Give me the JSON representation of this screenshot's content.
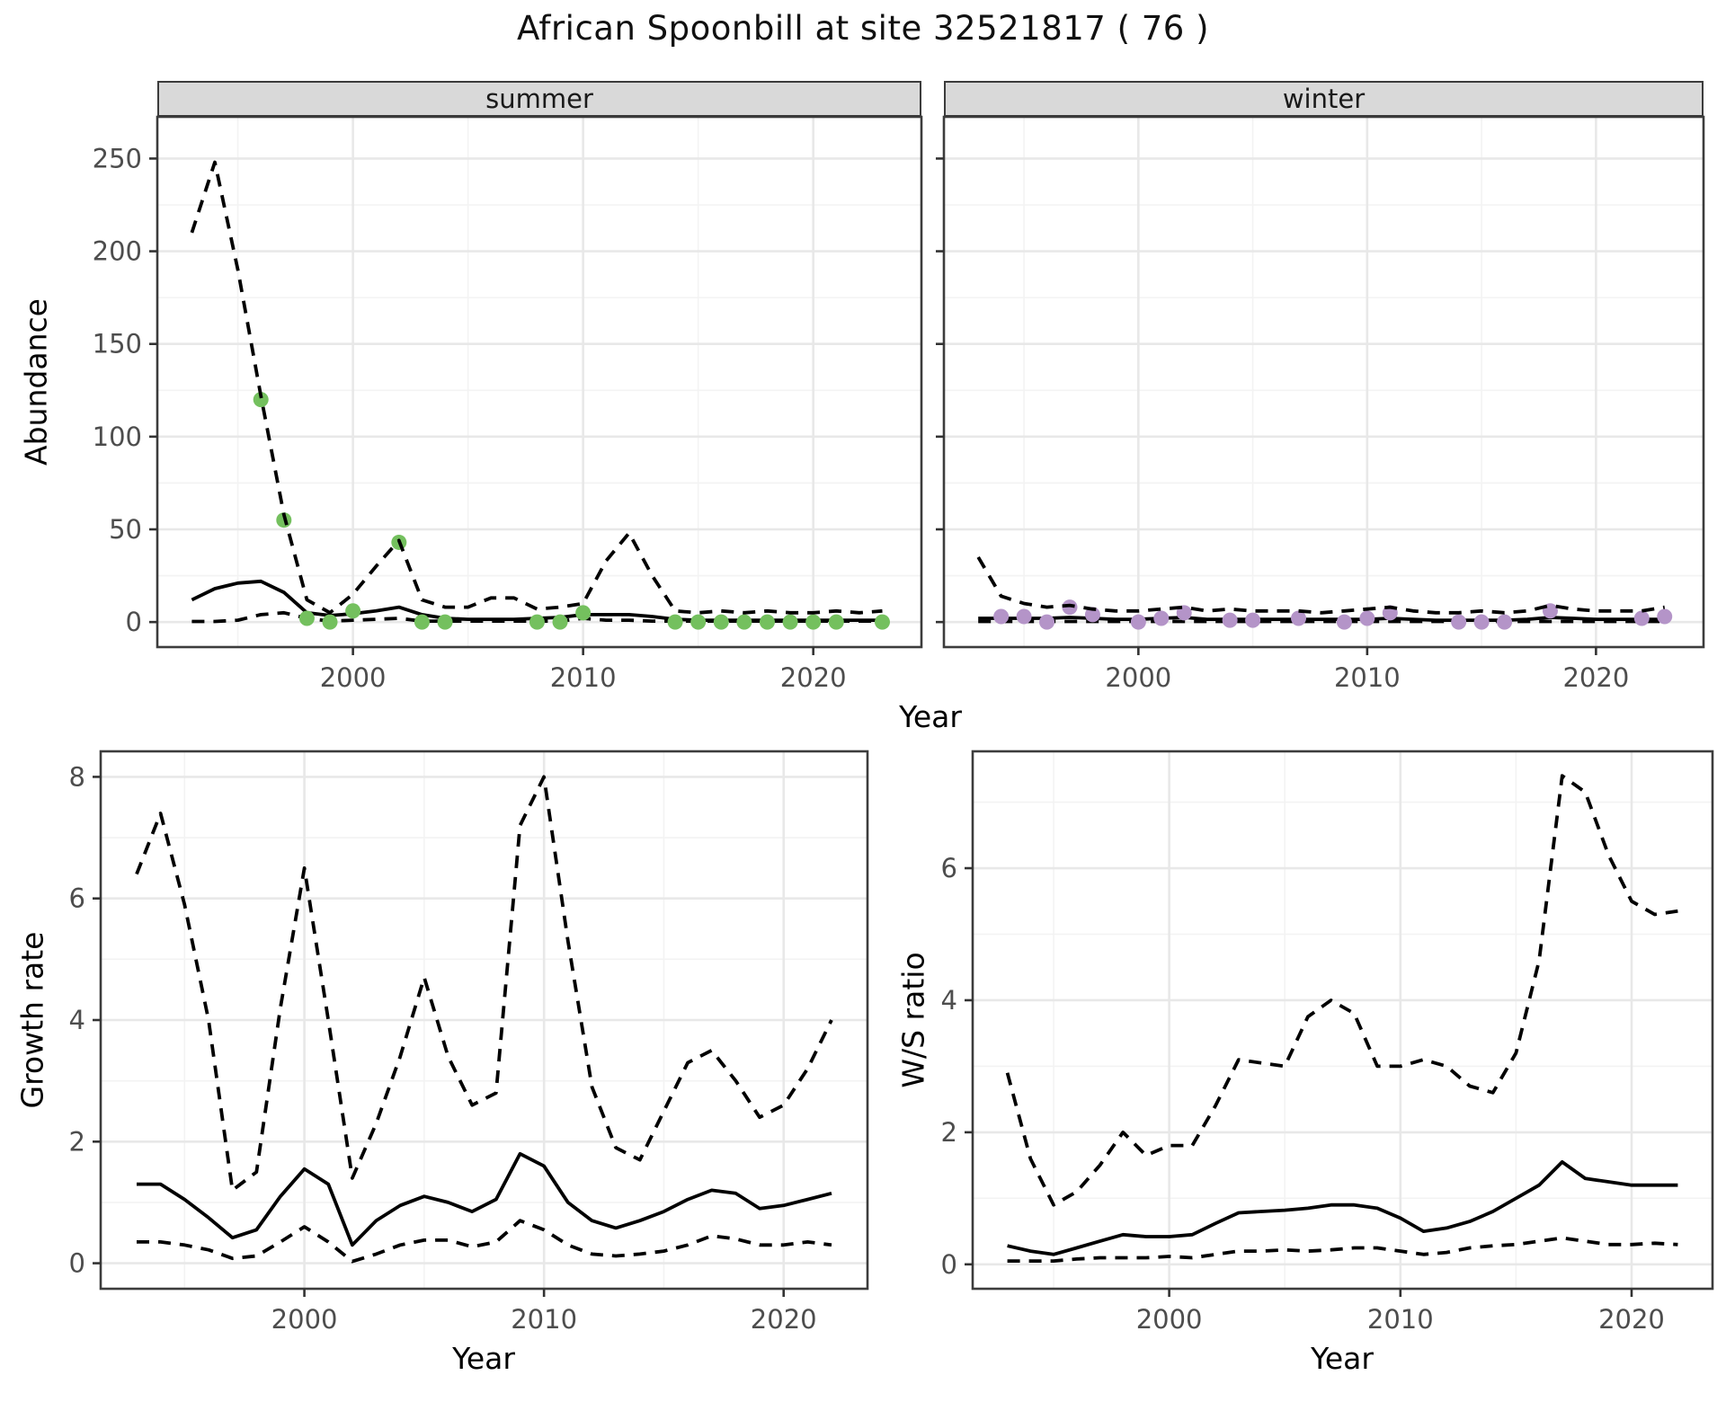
{
  "title": "African Spoonbill at site 32521817 ( 76 )",
  "colors": {
    "point_summer": "#74c05e",
    "point_winter": "#b494c8",
    "line": "#000000",
    "strip_bg": "#d9d9d9",
    "grid_major": "#e8e8e8",
    "grid_minor": "#f3f3f3",
    "panel_border": "#3c3c3c",
    "tick_text": "#4d4d4d"
  },
  "chart_data": [
    {
      "type": "line",
      "facet_label": "summer",
      "xlabel": "Year",
      "ylabel": "Abundance",
      "xlim": [
        1991.5,
        2024.7
      ],
      "ylim": [
        -13.5,
        272.5
      ],
      "xticks": [
        2000,
        2010,
        2020
      ],
      "yticks": [
        0,
        50,
        100,
        150,
        200,
        250
      ],
      "x": [
        1993,
        1994,
        1995,
        1996,
        1997,
        1998,
        1999,
        2000,
        2001,
        2002,
        2003,
        2004,
        2005,
        2006,
        2007,
        2008,
        2009,
        2010,
        2011,
        2012,
        2013,
        2014,
        2015,
        2016,
        2017,
        2018,
        2019,
        2020,
        2021,
        2022,
        2023
      ],
      "series": [
        {
          "name": "fit",
          "style": "solid",
          "values": [
            12,
            18,
            21,
            22,
            16,
            5,
            3.5,
            4.5,
            6,
            8,
            4,
            2,
            1.5,
            1.5,
            1.5,
            2,
            2.5,
            4,
            4,
            4,
            3,
            1.5,
            1,
            1,
            1,
            1,
            1,
            1,
            1,
            1,
            1
          ]
        },
        {
          "name": "upper_ci",
          "style": "dashed",
          "values": [
            210,
            248,
            190,
            122,
            58,
            12,
            5,
            15,
            30,
            44,
            12,
            8,
            8,
            13,
            13,
            7,
            8,
            10,
            33,
            48,
            25,
            6,
            5,
            6,
            5,
            6,
            5,
            5,
            6,
            5,
            6
          ]
        },
        {
          "name": "lower_ci",
          "style": "dashed",
          "values": [
            0.3,
            0.3,
            1,
            4,
            5,
            2,
            0.5,
            1,
            1.5,
            2,
            0.5,
            0.5,
            0.5,
            0.5,
            0.5,
            0.5,
            0.5,
            2,
            1,
            1,
            0.5,
            0.5,
            0.5,
            0.5,
            0.5,
            0.5,
            0.5,
            0.5,
            0.5,
            0.5,
            0.5
          ]
        }
      ],
      "points": {
        "color_key": "point_summer",
        "x": [
          1996,
          1997,
          1998,
          1999,
          2000,
          2002,
          2003,
          2004,
          2008,
          2009,
          2010,
          2014,
          2015,
          2016,
          2017,
          2018,
          2019,
          2020,
          2021,
          2023
        ],
        "y": [
          120,
          55,
          2,
          0,
          6,
          43,
          0,
          0,
          0,
          0,
          5,
          0,
          0,
          0,
          0,
          0,
          0,
          0,
          0,
          0
        ]
      }
    },
    {
      "type": "line",
      "facet_label": "winter",
      "xlabel": "Year",
      "ylabel": "Abundance",
      "xlim": [
        1991.5,
        2024.7
      ],
      "ylim": [
        -13.5,
        272.5
      ],
      "xticks": [
        2000,
        2010,
        2020
      ],
      "yticks": [
        0,
        50,
        100,
        150,
        200,
        250
      ],
      "x": [
        1993,
        1994,
        1995,
        1996,
        1997,
        1998,
        1999,
        2000,
        2001,
        2002,
        2003,
        2004,
        2005,
        2006,
        2007,
        2008,
        2009,
        2010,
        2011,
        2012,
        2013,
        2014,
        2015,
        2016,
        2017,
        2018,
        2019,
        2020,
        2021,
        2022,
        2023
      ],
      "series": [
        {
          "name": "fit",
          "style": "solid",
          "values": [
            2,
            2,
            2,
            2,
            2.5,
            2,
            1.5,
            1.5,
            2,
            2.5,
            1.5,
            1.5,
            1.5,
            1.5,
            1.5,
            1.5,
            1.5,
            1.5,
            2,
            1.5,
            1,
            1,
            1,
            1,
            1.5,
            2.5,
            2,
            1.5,
            1.5,
            1.5,
            1.5
          ]
        },
        {
          "name": "upper_ci",
          "style": "dashed",
          "values": [
            35,
            14,
            10,
            8,
            9,
            7,
            6,
            6,
            7,
            8,
            6,
            7,
            6,
            6,
            6,
            5,
            6,
            7,
            8,
            6,
            5,
            5,
            6,
            5,
            6,
            9,
            7,
            6,
            6,
            6,
            8
          ]
        },
        {
          "name": "lower_ci",
          "style": "dashed",
          "values": [
            0.3,
            0.3,
            0.3,
            0.3,
            0.3,
            0.3,
            0.3,
            0.3,
            0.3,
            0.3,
            0.3,
            0.3,
            0.3,
            0.3,
            0.3,
            0.3,
            0.3,
            0.3,
            0.3,
            0.3,
            0.3,
            0.3,
            0.3,
            0.3,
            0.3,
            0.3,
            0.3,
            0.3,
            0.3,
            0.3,
            0.3
          ]
        }
      ],
      "points": {
        "color_key": "point_winter",
        "x": [
          1994,
          1995,
          1996,
          1997,
          1998,
          2000,
          2001,
          2002,
          2004,
          2005,
          2007,
          2009,
          2010,
          2011,
          2014,
          2015,
          2016,
          2018,
          2022,
          2023
        ],
        "y": [
          3,
          3,
          0,
          8,
          4,
          0,
          2,
          5,
          1,
          1,
          2,
          0,
          2,
          5,
          0,
          0,
          0,
          6,
          2,
          3
        ]
      }
    },
    {
      "type": "line",
      "facet_label": null,
      "xlabel": "Year",
      "ylabel": "Growth rate",
      "xlim": [
        1991.5,
        2023.5
      ],
      "ylim": [
        -0.42,
        8.42
      ],
      "xticks": [
        2000,
        2010,
        2020
      ],
      "yticks": [
        0,
        2,
        4,
        6,
        8
      ],
      "x": [
        1993,
        1994,
        1995,
        1996,
        1997,
        1998,
        1999,
        2000,
        2001,
        2002,
        2003,
        2004,
        2005,
        2006,
        2007,
        2008,
        2009,
        2010,
        2011,
        2012,
        2013,
        2014,
        2015,
        2016,
        2017,
        2018,
        2019,
        2020,
        2021,
        2022
      ],
      "series": [
        {
          "name": "fit",
          "style": "solid",
          "values": [
            1.3,
            1.3,
            1.05,
            0.75,
            0.42,
            0.55,
            1.1,
            1.55,
            1.3,
            0.3,
            0.7,
            0.95,
            1.1,
            1.0,
            0.85,
            1.05,
            1.8,
            1.6,
            1.0,
            0.7,
            0.58,
            0.7,
            0.85,
            1.05,
            1.2,
            1.15,
            0.9,
            0.95,
            1.05,
            1.15
          ]
        },
        {
          "name": "upper_ci",
          "style": "dashed",
          "values": [
            6.4,
            7.4,
            5.9,
            4.0,
            1.2,
            1.5,
            4.2,
            6.5,
            4.0,
            1.4,
            2.3,
            3.4,
            4.7,
            3.4,
            2.6,
            2.8,
            7.2,
            8.0,
            5.3,
            2.9,
            1.9,
            1.7,
            2.5,
            3.3,
            3.5,
            3.0,
            2.4,
            2.6,
            3.2,
            4.0
          ]
        },
        {
          "name": "lower_ci",
          "style": "dashed",
          "values": [
            0.35,
            0.35,
            0.3,
            0.22,
            0.08,
            0.12,
            0.35,
            0.6,
            0.35,
            0.03,
            0.15,
            0.3,
            0.38,
            0.38,
            0.27,
            0.35,
            0.7,
            0.55,
            0.3,
            0.15,
            0.12,
            0.15,
            0.2,
            0.3,
            0.45,
            0.4,
            0.3,
            0.3,
            0.35,
            0.3
          ]
        }
      ],
      "points": null
    },
    {
      "type": "line",
      "facet_label": null,
      "xlabel": "Year",
      "ylabel": "W/S ratio",
      "xlim": [
        1991.5,
        2023.5
      ],
      "ylim": [
        -0.37,
        7.77
      ],
      "xticks": [
        2000,
        2010,
        2020
      ],
      "yticks": [
        0,
        2,
        4,
        6
      ],
      "x": [
        1993,
        1994,
        1995,
        1996,
        1997,
        1998,
        1999,
        2000,
        2001,
        2002,
        2003,
        2004,
        2005,
        2006,
        2007,
        2008,
        2009,
        2010,
        2011,
        2012,
        2013,
        2014,
        2015,
        2016,
        2017,
        2018,
        2019,
        2020,
        2021,
        2022
      ],
      "series": [
        {
          "name": "fit",
          "style": "solid",
          "values": [
            0.28,
            0.2,
            0.15,
            0.25,
            0.35,
            0.45,
            0.42,
            0.42,
            0.45,
            0.62,
            0.78,
            0.8,
            0.82,
            0.85,
            0.9,
            0.9,
            0.85,
            0.7,
            0.5,
            0.55,
            0.65,
            0.8,
            1.0,
            1.2,
            1.55,
            1.3,
            1.25,
            1.2,
            1.2,
            1.2
          ]
        },
        {
          "name": "upper_ci",
          "style": "dashed",
          "values": [
            2.9,
            1.6,
            0.9,
            1.1,
            1.5,
            2.0,
            1.65,
            1.8,
            1.8,
            2.4,
            3.1,
            3.05,
            3.0,
            3.75,
            4.0,
            3.8,
            3.0,
            3.0,
            3.1,
            3.0,
            2.7,
            2.6,
            3.2,
            4.6,
            7.4,
            7.15,
            6.2,
            5.5,
            5.3,
            5.35
          ]
        },
        {
          "name": "lower_ci",
          "style": "dashed",
          "values": [
            0.05,
            0.05,
            0.05,
            0.08,
            0.1,
            0.1,
            0.1,
            0.12,
            0.1,
            0.15,
            0.2,
            0.2,
            0.22,
            0.2,
            0.22,
            0.25,
            0.25,
            0.2,
            0.15,
            0.18,
            0.25,
            0.28,
            0.3,
            0.35,
            0.4,
            0.35,
            0.3,
            0.3,
            0.32,
            0.3
          ]
        }
      ],
      "points": null
    }
  ]
}
